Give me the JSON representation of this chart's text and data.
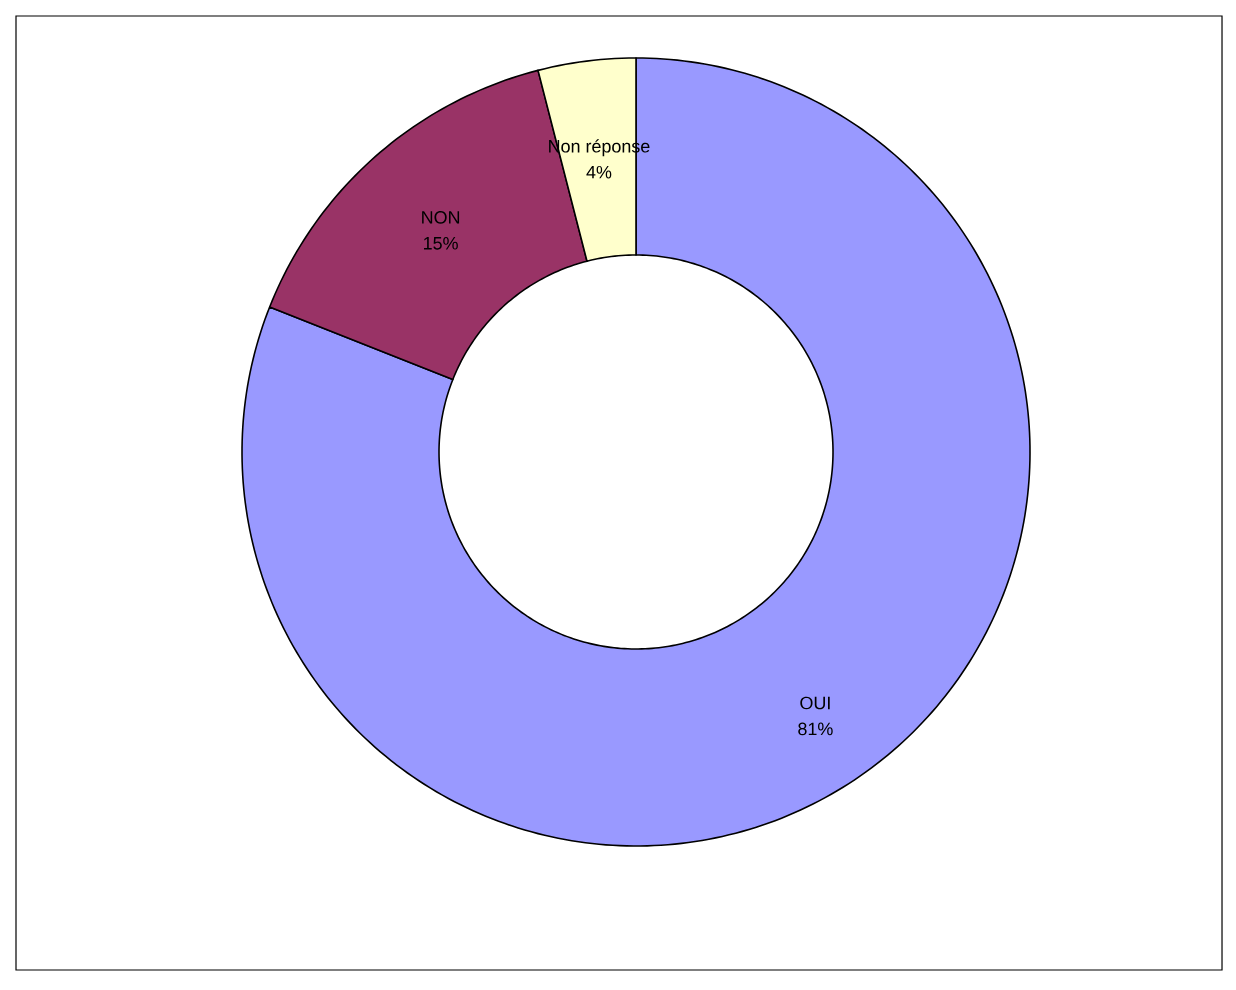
{
  "chart_data": {
    "type": "donut",
    "categories": [
      "OUI",
      "NON",
      "Non réponse"
    ],
    "values": [
      81,
      15,
      4
    ],
    "colors": [
      "#9999ff",
      "#993366",
      "#ffffcc"
    ],
    "value_labels": [
      "81%",
      "15%",
      "4%"
    ]
  }
}
